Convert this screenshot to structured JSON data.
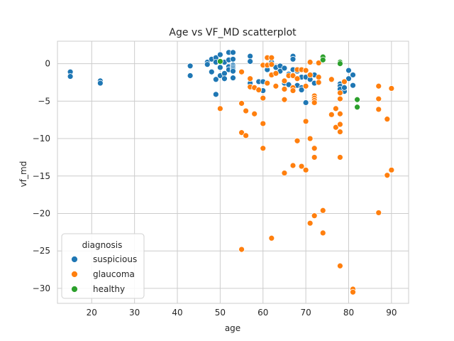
{
  "chart_data": {
    "type": "scatter",
    "title": "Age vs VF_MD scatterplot",
    "xlabel": "age",
    "ylabel": "vf_md",
    "xlim": [
      12,
      94
    ],
    "ylim": [
      -32,
      3
    ],
    "xticks": [
      20,
      30,
      40,
      50,
      60,
      70,
      80,
      90
    ],
    "yticks": [
      0,
      -5,
      -10,
      -15,
      -20,
      -25,
      -30
    ],
    "grid": true,
    "legend": {
      "title": "diagnosis",
      "placement": "lower-left",
      "entries": [
        "suspicious",
        "glaucoma",
        "healthy"
      ]
    },
    "series": [
      {
        "name": "suspicious",
        "color": "#1f77b4",
        "points": [
          [
            15,
            -1.1
          ],
          [
            15,
            -1.7
          ],
          [
            22,
            -2.3
          ],
          [
            22,
            -2.6
          ],
          [
            43,
            -0.3
          ],
          [
            43,
            -1.6
          ],
          [
            47,
            0.2
          ],
          [
            47,
            -0.1
          ],
          [
            48,
            0.6
          ],
          [
            48,
            -1.1
          ],
          [
            49,
            0.8
          ],
          [
            49,
            0.2
          ],
          [
            49,
            -2.1
          ],
          [
            49,
            -4.1
          ],
          [
            50,
            1.2
          ],
          [
            50,
            0.3
          ],
          [
            50,
            -0.5
          ],
          [
            50,
            -1.6
          ],
          [
            51,
            0.2
          ],
          [
            51,
            -1.3
          ],
          [
            51,
            -2.0
          ],
          [
            52,
            1.5
          ],
          [
            52,
            0.5
          ],
          [
            52,
            -0.4
          ],
          [
            52,
            -0.8
          ],
          [
            53,
            1.5
          ],
          [
            53,
            0.6
          ],
          [
            53,
            -0.2
          ],
          [
            53,
            -0.4
          ],
          [
            53,
            -0.6
          ],
          [
            53,
            -0.8
          ],
          [
            53,
            -1.0
          ],
          [
            53,
            -1.9
          ],
          [
            57,
            1.0
          ],
          [
            57,
            0.3
          ],
          [
            57,
            -2.6
          ],
          [
            59,
            -2.4
          ],
          [
            60,
            -3.6
          ],
          [
            60,
            -2.4
          ],
          [
            61,
            -0.8
          ],
          [
            62,
            0.2
          ],
          [
            63,
            -0.5
          ],
          [
            64,
            -0.3
          ],
          [
            64,
            -1.0
          ],
          [
            65,
            -0.6
          ],
          [
            65,
            -2.6
          ],
          [
            66,
            -1.4
          ],
          [
            66,
            -2.8
          ],
          [
            67,
            1.0
          ],
          [
            67,
            0.6
          ],
          [
            67,
            -0.8
          ],
          [
            68,
            -1.0
          ],
          [
            68,
            -2.9
          ],
          [
            69,
            -1.8
          ],
          [
            69,
            -3.2
          ],
          [
            69,
            -3.5
          ],
          [
            70,
            -1.8
          ],
          [
            70,
            -5.2
          ],
          [
            71,
            -2.1
          ],
          [
            72,
            -1.5
          ],
          [
            72,
            -2.6
          ],
          [
            78,
            -2.7
          ],
          [
            78,
            -3.0
          ],
          [
            78,
            -3.4
          ],
          [
            79,
            -3.7
          ],
          [
            79,
            -3.2
          ],
          [
            80,
            -0.9
          ],
          [
            80,
            -2.0
          ],
          [
            81,
            -1.5
          ],
          [
            81,
            -2.9
          ]
        ]
      },
      {
        "name": "glaucoma",
        "color": "#ff7f0e",
        "points": [
          [
            50,
            -6.0
          ],
          [
            55,
            -1.1
          ],
          [
            55,
            -5.3
          ],
          [
            55,
            -9.2
          ],
          [
            55,
            -24.8
          ],
          [
            56,
            -6.3
          ],
          [
            56,
            -9.6
          ],
          [
            57,
            -2.0
          ],
          [
            57,
            -3.1
          ],
          [
            58,
            -6.7
          ],
          [
            58,
            -3.2
          ],
          [
            59,
            -3.5
          ],
          [
            60,
            -0.2
          ],
          [
            60,
            -4.6
          ],
          [
            60,
            -8.0
          ],
          [
            60,
            -11.3
          ],
          [
            61,
            0.8
          ],
          [
            61,
            -0.2
          ],
          [
            61,
            -2.6
          ],
          [
            62,
            0.8
          ],
          [
            62,
            -0.1
          ],
          [
            62,
            -1.5
          ],
          [
            62,
            -23.3
          ],
          [
            63,
            -1.3
          ],
          [
            63,
            -3.0
          ],
          [
            65,
            -2.3
          ],
          [
            65,
            -3.4
          ],
          [
            65,
            -4.8
          ],
          [
            65,
            -14.6
          ],
          [
            66,
            -1.6
          ],
          [
            67,
            -1.6
          ],
          [
            67,
            -3.2
          ],
          [
            67,
            -3.6
          ],
          [
            67,
            -13.6
          ],
          [
            68,
            -0.8
          ],
          [
            68,
            -2.0
          ],
          [
            68,
            -10.3
          ],
          [
            69,
            -0.8
          ],
          [
            69,
            -13.7
          ],
          [
            70,
            -0.9
          ],
          [
            70,
            -3.0
          ],
          [
            70,
            -7.7
          ],
          [
            70,
            -14.2
          ],
          [
            71,
            0.2
          ],
          [
            71,
            -1.5
          ],
          [
            71,
            -10.0
          ],
          [
            71,
            -21.3
          ],
          [
            72,
            -4.3
          ],
          [
            72,
            -4.6
          ],
          [
            72,
            -4.9
          ],
          [
            72,
            -5.2
          ],
          [
            72,
            -11.3
          ],
          [
            72,
            -12.5
          ],
          [
            72,
            -20.3
          ],
          [
            73,
            0.1
          ],
          [
            73,
            -1.8
          ],
          [
            73,
            -2.5
          ],
          [
            74,
            -19.6
          ],
          [
            74,
            -22.6
          ],
          [
            76,
            -2.1
          ],
          [
            76,
            -6.8
          ],
          [
            77,
            -6.0
          ],
          [
            77,
            -8.5
          ],
          [
            78,
            -3.9
          ],
          [
            78,
            -4.7
          ],
          [
            78,
            -6.7
          ],
          [
            78,
            -8.1
          ],
          [
            78,
            -9.1
          ],
          [
            78,
            -12.5
          ],
          [
            78,
            -27.0
          ],
          [
            79,
            -2.4
          ],
          [
            81,
            -30.1
          ],
          [
            81,
            -30.5
          ],
          [
            87,
            -3.0
          ],
          [
            87,
            -4.7
          ],
          [
            87,
            -6.1
          ],
          [
            87,
            -19.9
          ],
          [
            89,
            -7.4
          ],
          [
            89,
            -14.9
          ],
          [
            90,
            -3.3
          ],
          [
            90,
            -14.2
          ]
        ]
      },
      {
        "name": "healthy",
        "color": "#2ca02c",
        "points": [
          [
            50,
            0.3
          ],
          [
            74,
            0.9
          ],
          [
            74,
            0.5
          ],
          [
            78,
            0.2
          ],
          [
            78,
            0.0
          ],
          [
            82,
            -4.8
          ],
          [
            82,
            -5.8
          ]
        ]
      }
    ]
  }
}
